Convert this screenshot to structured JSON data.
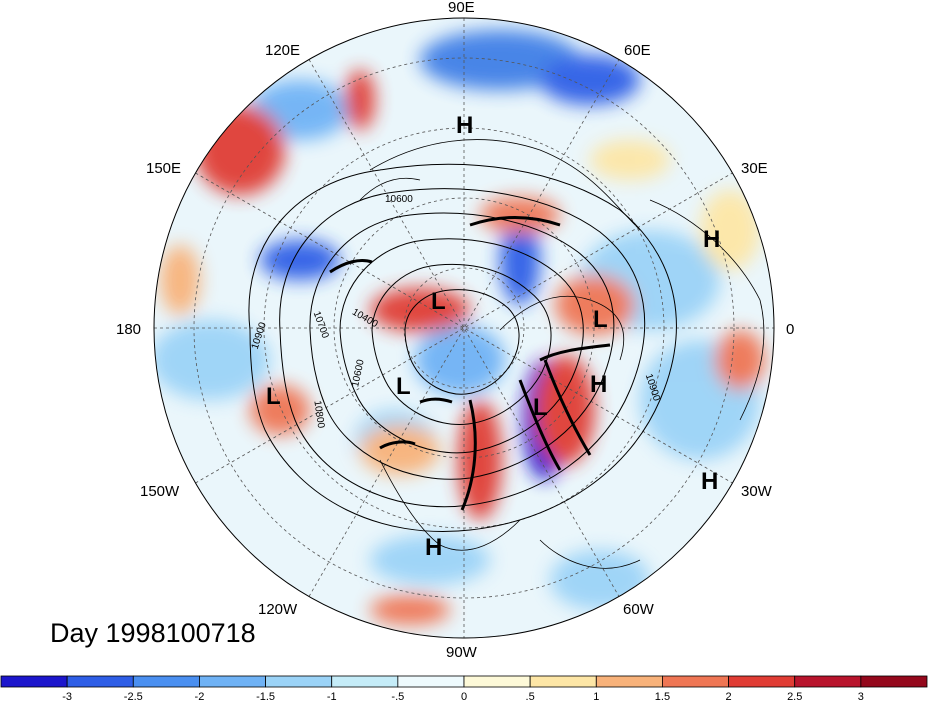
{
  "map": {
    "projection": "north-polar-stereographic",
    "longitude_labels": [
      "90E",
      "60E",
      "30E",
      "0",
      "30W",
      "60W",
      "90W",
      "120W",
      "150W",
      "180",
      "150E",
      "120E"
    ],
    "pressure_systems": [
      {
        "type": "H",
        "label": "H"
      },
      {
        "type": "H",
        "label": "H"
      },
      {
        "type": "H",
        "label": "H"
      },
      {
        "type": "H",
        "label": "H"
      },
      {
        "type": "H",
        "label": "H"
      },
      {
        "type": "L",
        "label": "L"
      },
      {
        "type": "L",
        "label": "L"
      },
      {
        "type": "L",
        "label": "L"
      },
      {
        "type": "L",
        "label": "L"
      },
      {
        "type": "L",
        "label": "L"
      }
    ],
    "contour_labels": [
      "10600",
      "10900",
      "10700",
      "10400",
      "10600",
      "10800",
      "10900"
    ]
  },
  "day_label": "Day 1998100718",
  "colorbar": {
    "ticks": [
      "-3",
      "-2.5",
      "-2",
      "-1.5",
      "-1",
      "-.5",
      "0",
      ".5",
      "1",
      "1.5",
      "2",
      "2.5",
      "3"
    ],
    "colors": [
      "#1c16cc",
      "#2e5ee6",
      "#4a8ff0",
      "#6fb2f5",
      "#9bd3f7",
      "#c5ecf8",
      "#eefafd",
      "#fdf9d8",
      "#fde6a6",
      "#f8b27a",
      "#ef7654",
      "#e03c34",
      "#b8142c",
      "#94081c"
    ]
  }
}
